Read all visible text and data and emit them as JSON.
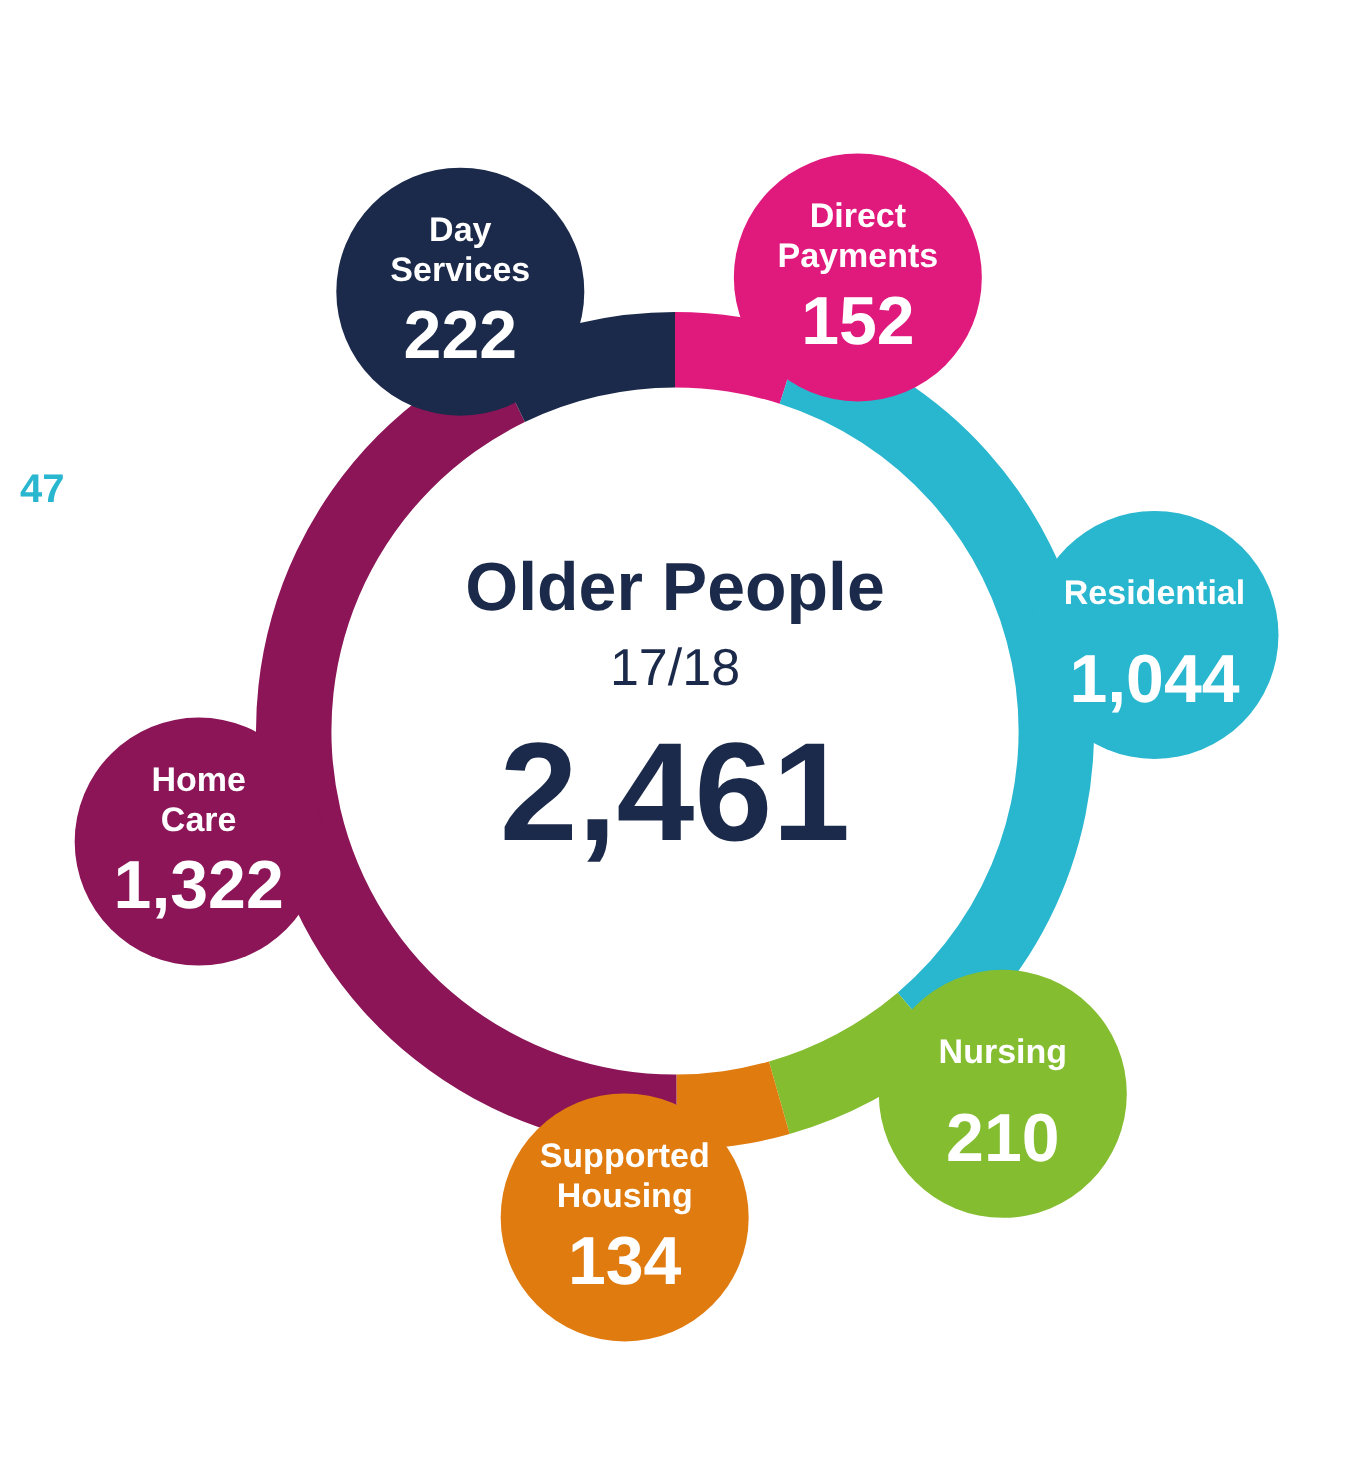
{
  "chart_data": {
    "type": "donut",
    "title": "Older People",
    "subtitle": "17/18",
    "annotations": [
      "2,461",
      "47"
    ],
    "categories": [
      "Direct Payments",
      "Residential",
      "Nursing",
      "Supported Housing",
      "Home Care",
      "Day Services"
    ],
    "values": [
      152,
      1044,
      210,
      134,
      1322,
      222
    ],
    "colors": [
      "#e0197d",
      "#29b6cf",
      "#84bd2f",
      "#e07b10",
      "#8b1557",
      "#1b2a4a"
    ],
    "value_labels": [
      "152",
      "1,044",
      "210",
      "134",
      "1,322",
      "222"
    ],
    "legend": false
  }
}
